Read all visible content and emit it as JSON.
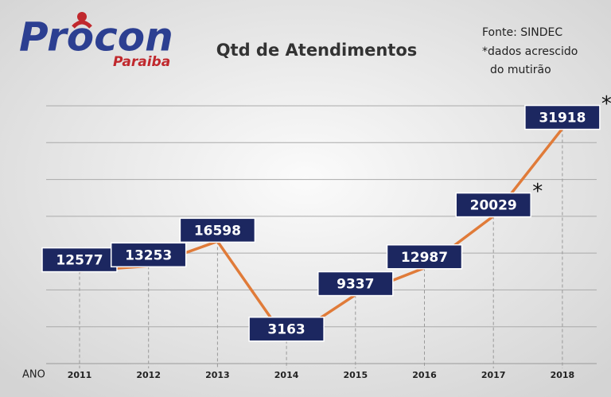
{
  "logo": {
    "name": "Procon",
    "subtitle": "Paraiba"
  },
  "source": "Fonte: SINDEC",
  "note": [
    "*dados acrescido",
    "do mutirão"
  ],
  "chart_data": {
    "type": "line",
    "title": "Qtd de Atendimentos",
    "x_label": "ANO",
    "categories": [
      "2011",
      "2012",
      "2013",
      "2014",
      "2015",
      "2016",
      "2017",
      "2018"
    ],
    "values": [
      12577,
      13253,
      16598,
      3163,
      9337,
      12987,
      20029,
      31918
    ],
    "color": "#e07b39",
    "label_color": "#1c2760",
    "ylim": [
      0,
      35000
    ],
    "yticks": [
      0,
      5000,
      10000,
      15000,
      20000,
      25000,
      30000,
      35000
    ],
    "grid": true,
    "annotations": [
      {
        "text": "*",
        "x": "2017"
      },
      {
        "text": "*",
        "x": "2018"
      }
    ]
  }
}
